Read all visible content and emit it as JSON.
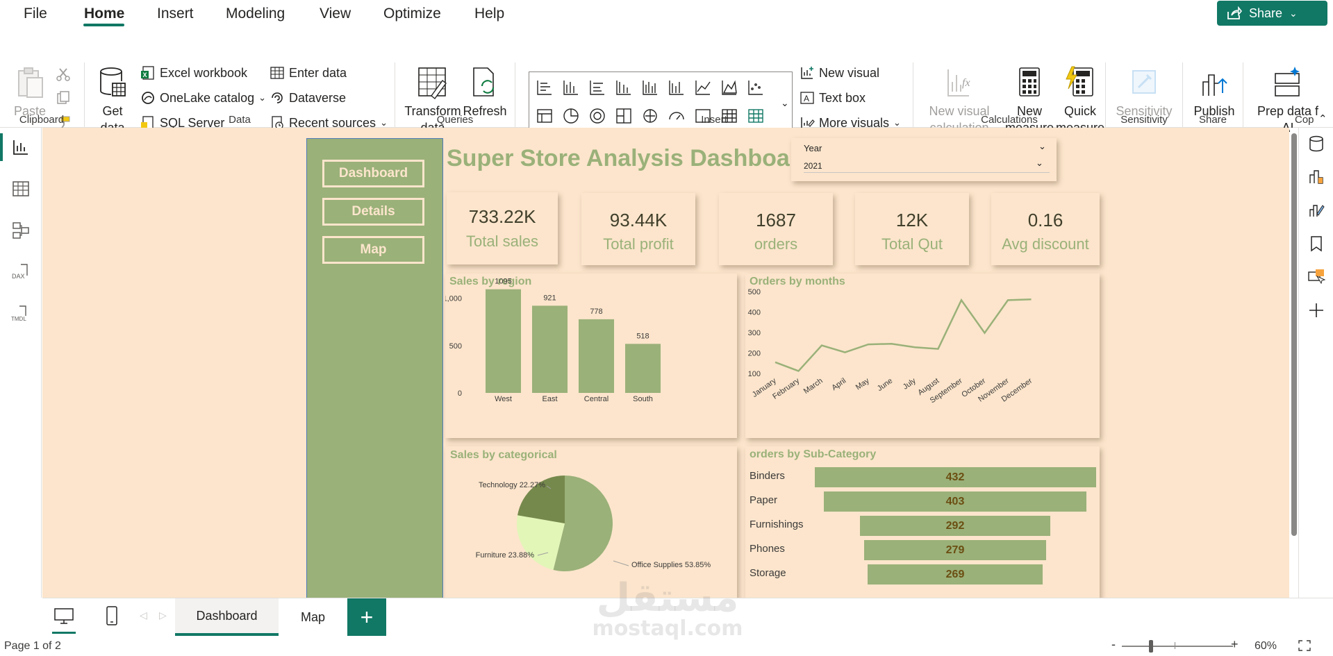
{
  "menu": {
    "items": [
      "File",
      "Home",
      "Insert",
      "Modeling",
      "View",
      "Optimize",
      "Help"
    ],
    "share_label": "Share"
  },
  "ribbon": {
    "clipboard": {
      "paste": "Paste",
      "group": "Clipboard"
    },
    "data": {
      "get_data": "Get data",
      "excel": "Excel workbook",
      "onelake": "OneLake catalog",
      "sql": "SQL Server",
      "enter_data": "Enter data",
      "dataverse": "Dataverse",
      "recent": "Recent sources",
      "group": "Data"
    },
    "queries": {
      "transform": "Transform data",
      "refresh": "Refresh",
      "group": "Queries"
    },
    "insert": {
      "new_visual": "New visual",
      "text_box": "Text box",
      "more_visuals": "More visuals",
      "group": "Insert"
    },
    "calculations": {
      "new_visual_calc": "New visual calculation",
      "new_measure": "New measure",
      "quick_measure": "Quick measure",
      "group": "Calculations"
    },
    "sensitivity": {
      "label": "Sensitivity",
      "group": "Sensitivity"
    },
    "share": {
      "publish": "Publish",
      "group": "Share"
    },
    "copilot": {
      "prep": "Prep data f AI",
      "group": "Cop"
    }
  },
  "report": {
    "title": "Super Store Analysis Dashboard",
    "nav": [
      "Dashboard",
      "Details",
      "Map"
    ],
    "slicer": {
      "label": "Year",
      "value": "2021"
    },
    "kpis": [
      {
        "value": "733.22K",
        "label": "Total sales"
      },
      {
        "value": "93.44K",
        "label": "Total profit"
      },
      {
        "value": "1687",
        "label": "orders"
      },
      {
        "value": "12K",
        "label": "Total Qut"
      },
      {
        "value": "0.16",
        "label": "Avg discount"
      }
    ],
    "titles": {
      "region": "Sales by region",
      "months": "Orders by months",
      "categorical": "Sales by categorical",
      "subcategory": "orders by Sub-Category"
    }
  },
  "chart_data": [
    {
      "type": "bar",
      "title": "Sales by region",
      "categories": [
        "West",
        "East",
        "Central",
        "South"
      ],
      "values": [
        1095,
        921,
        778,
        518
      ],
      "ylim": [
        0,
        1100
      ],
      "yticks": [
        "0",
        "500",
        "1,000"
      ],
      "color": "#9ab179"
    },
    {
      "type": "line",
      "title": "Orders by months",
      "categories": [
        "January",
        "February",
        "March",
        "April",
        "May",
        "June",
        "July",
        "August",
        "September",
        "October",
        "November",
        "December"
      ],
      "values": [
        155,
        112,
        237,
        203,
        242,
        245,
        228,
        220,
        458,
        298,
        458,
        462
      ],
      "ylim": [
        80,
        520
      ],
      "yticks": [
        100,
        200,
        300,
        400,
        500
      ],
      "color": "#9ab179"
    },
    {
      "type": "pie",
      "title": "Sales by categorical",
      "slices": [
        {
          "label": "Office Supplies 53.85%",
          "value": 53.85,
          "color": "#9ab179"
        },
        {
          "label": "Furniture 23.88%",
          "value": 23.88,
          "color": "#e2f6b8"
        },
        {
          "label": "Technology 22.27%",
          "value": 22.27,
          "color": "#76894d"
        }
      ]
    },
    {
      "type": "bar",
      "title": "orders by Sub-Category",
      "categories": [
        "Binders",
        "Paper",
        "Furnishings",
        "Phones",
        "Storage"
      ],
      "values": [
        432,
        403,
        292,
        279,
        269
      ],
      "color": "#9ab179"
    }
  ],
  "tabs": [
    "Dashboard",
    "Map"
  ],
  "status": {
    "page": "Page 1 of 2",
    "zoom": "60%"
  }
}
